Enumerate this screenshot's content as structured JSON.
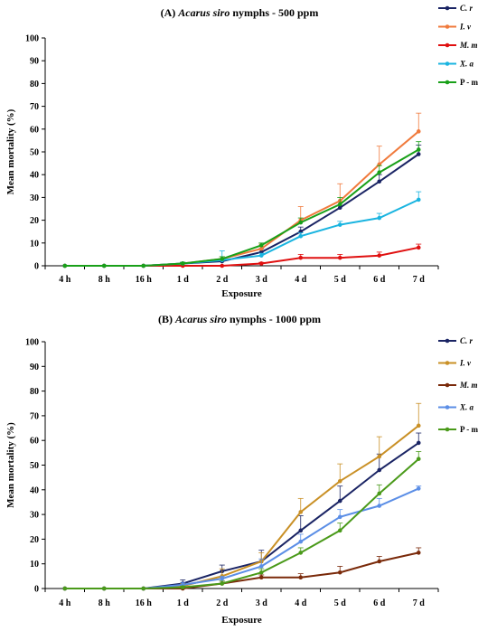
{
  "chart_data": [
    {
      "type": "line",
      "title_label": "(A)",
      "title_species": "Acarus siro",
      "title_rest": " nymphs - 500 ppm",
      "xlabel": "Exposure",
      "ylabel": "Mean mortality (%)",
      "ylim": [
        0,
        100
      ],
      "yticks": [
        "0",
        "10",
        "20",
        "30",
        "40",
        "50",
        "60",
        "70",
        "80",
        "90",
        "100"
      ],
      "categories": [
        "4 h",
        "8 h",
        "16 h",
        "1 d",
        "2 d",
        "3 d",
        "4 d",
        "5 d",
        "6 d",
        "7 d"
      ],
      "legend_position": "top-right",
      "series": [
        {
          "name": "C. r",
          "italic": true,
          "color": "#1a2464",
          "values": [
            0,
            0,
            0,
            1,
            2,
            6,
            15,
            25.5,
            37,
            49
          ],
          "errors": [
            0,
            0,
            0,
            0.5,
            1,
            1.5,
            2,
            2.5,
            3,
            4
          ]
        },
        {
          "name": "I. v",
          "italic": true,
          "color": "#f07a3c",
          "values": [
            0,
            0,
            0,
            1,
            3,
            7.5,
            20,
            28.5,
            44.5,
            59
          ],
          "errors": [
            0,
            0,
            0,
            0.5,
            1,
            2,
            6,
            7.5,
            8,
            8
          ]
        },
        {
          "name": "M. m",
          "italic": true,
          "color": "#e01010",
          "values": [
            0,
            0,
            0,
            0,
            0,
            1,
            3.5,
            3.5,
            4.5,
            8
          ],
          "errors": [
            0,
            0,
            0,
            0,
            0,
            0.5,
            1.5,
            1.5,
            1.5,
            1.5
          ]
        },
        {
          "name": "X. a",
          "italic": true,
          "color": "#19b4e0",
          "values": [
            0,
            0,
            0,
            1,
            2.5,
            4.5,
            13,
            18,
            21,
            29
          ],
          "errors": [
            0,
            0,
            0,
            0.5,
            4,
            1,
            1.5,
            1.5,
            2,
            3.5
          ]
        },
        {
          "name": "P - m",
          "italic": false,
          "color": "#19a019",
          "values": [
            0,
            0,
            0,
            1,
            3,
            9,
            19,
            27,
            41,
            51
          ],
          "errors": [
            0,
            0,
            0,
            0.5,
            1,
            1,
            2,
            3,
            3,
            3.5
          ]
        }
      ]
    },
    {
      "type": "line",
      "title_label": "(B)",
      "title_species": "Acarus siro",
      "title_rest": " nymphs - 1000 ppm",
      "xlabel": "Exposure",
      "ylabel": "Mean mortality (%)",
      "ylim": [
        0,
        100
      ],
      "yticks": [
        "0",
        "10",
        "20",
        "30",
        "40",
        "50",
        "60",
        "70",
        "80",
        "90",
        "100"
      ],
      "categories": [
        "4 h",
        "8 h",
        "16 h",
        "1 d",
        "2 d",
        "3 d",
        "4 d",
        "5 d",
        "6 d",
        "7 d"
      ],
      "legend_position": "top-right",
      "series": [
        {
          "name": "C. r",
          "italic": true,
          "color": "#1a2464",
          "values": [
            0,
            0,
            0,
            2,
            7,
            11,
            23.5,
            35.5,
            48,
            59
          ],
          "errors": [
            0,
            0,
            0,
            1.5,
            2.5,
            4.5,
            6,
            6,
            6.5,
            4
          ]
        },
        {
          "name": "I. v",
          "italic": true,
          "color": "#c99026",
          "values": [
            0,
            0,
            0,
            1,
            5,
            11,
            31,
            43.5,
            53.5,
            66
          ],
          "errors": [
            0,
            0,
            0,
            1,
            3,
            3.5,
            5.5,
            7,
            8,
            9
          ]
        },
        {
          "name": "M. m",
          "italic": true,
          "color": "#7a2a0a",
          "values": [
            0,
            0,
            0,
            0,
            2,
            4.5,
            4.5,
            6.5,
            11,
            14.5
          ],
          "errors": [
            0,
            0,
            0,
            0,
            1,
            1,
            1.5,
            2.5,
            2,
            2
          ]
        },
        {
          "name": "X. a",
          "italic": true,
          "color": "#5b8ee6",
          "values": [
            0,
            0,
            0,
            1.5,
            4,
            9,
            19,
            29,
            33.5,
            40.5
          ],
          "errors": [
            0,
            0,
            0,
            1,
            1,
            3,
            3,
            3,
            3,
            1
          ]
        },
        {
          "name": "P - m",
          "italic": false,
          "color": "#4a9a1a",
          "values": [
            0,
            0,
            0,
            0.5,
            2,
            6.5,
            14.5,
            23.5,
            38.5,
            52.5
          ],
          "errors": [
            0,
            0,
            0,
            0.5,
            1,
            1.5,
            2,
            3,
            3.5,
            3
          ]
        }
      ]
    }
  ]
}
